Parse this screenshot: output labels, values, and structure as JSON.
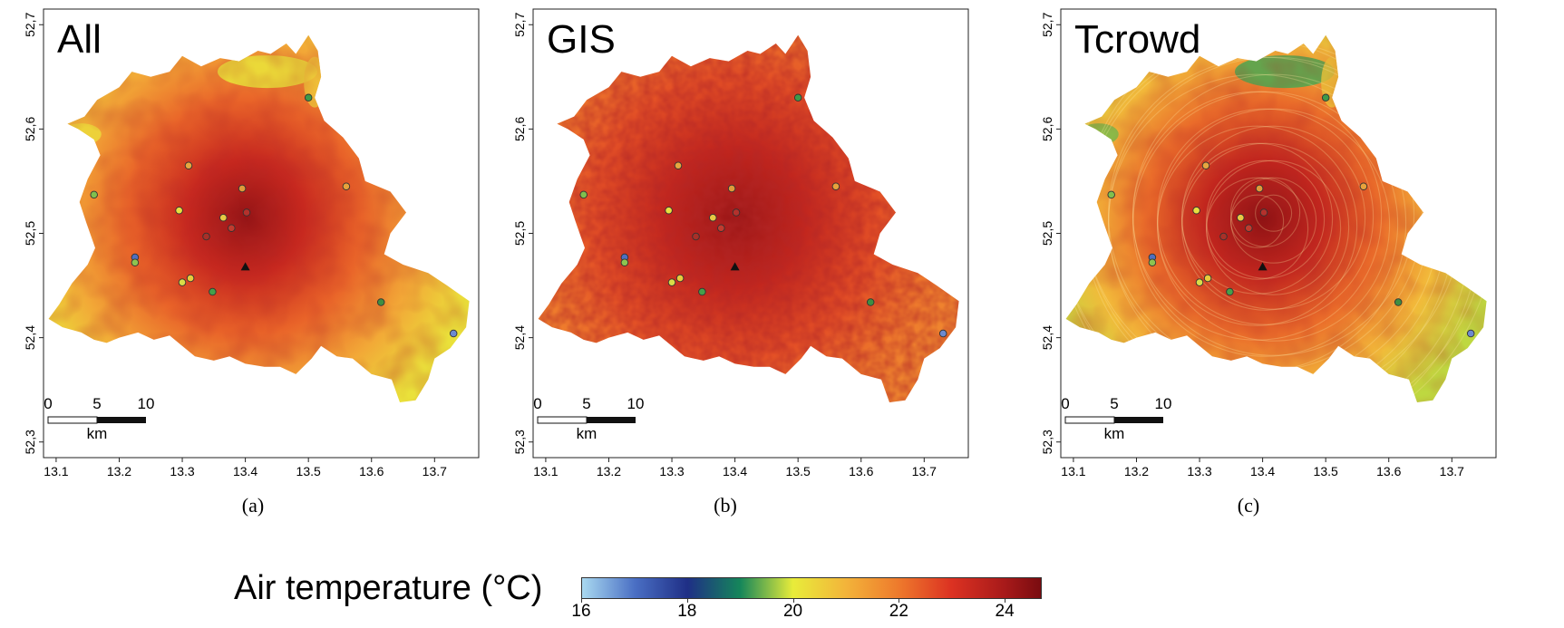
{
  "figure": {
    "xaxis": {
      "ticks": [
        "13.1",
        "13.2",
        "13.3",
        "13.4",
        "13.5",
        "13.6",
        "13.7"
      ],
      "values": [
        13.1,
        13.2,
        13.3,
        13.4,
        13.5,
        13.6,
        13.7
      ],
      "range": [
        13.08,
        13.77
      ]
    },
    "yaxis": {
      "ticks": [
        "52,3",
        "52,4",
        "52,5",
        "52,6",
        "52,7"
      ],
      "values": [
        52.3,
        52.4,
        52.5,
        52.6,
        52.7
      ],
      "range": [
        52.285,
        52.715
      ]
    },
    "scalebar": {
      "labels": [
        "0",
        "5",
        "10"
      ],
      "unit": "km"
    },
    "stations": [
      {
        "lon": 13.5,
        "lat": 52.63,
        "color": "#3f9a4a"
      },
      {
        "lon": 13.31,
        "lat": 52.565,
        "color": "#e6a640"
      },
      {
        "lon": 13.16,
        "lat": 52.537,
        "color": "#7fc04e"
      },
      {
        "lon": 13.395,
        "lat": 52.543,
        "color": "#e09a3a"
      },
      {
        "lon": 13.56,
        "lat": 52.545,
        "color": "#e7a23c"
      },
      {
        "lon": 13.295,
        "lat": 52.522,
        "color": "#e8e040"
      },
      {
        "lon": 13.365,
        "lat": 52.515,
        "color": "#e8c844"
      },
      {
        "lon": 13.402,
        "lat": 52.52,
        "color": "#b4312c"
      },
      {
        "lon": 13.338,
        "lat": 52.497,
        "color": "#a83028"
      },
      {
        "lon": 13.378,
        "lat": 52.505,
        "color": "#c23b2e"
      },
      {
        "lon": 13.225,
        "lat": 52.477,
        "color": "#4f6fc0"
      },
      {
        "lon": 13.225,
        "lat": 52.472,
        "color": "#8ec450"
      },
      {
        "lon": 13.3,
        "lat": 52.453,
        "color": "#d9dc48"
      },
      {
        "lon": 13.313,
        "lat": 52.457,
        "color": "#e8cc3c"
      },
      {
        "lon": 13.348,
        "lat": 52.444,
        "color": "#46a04a"
      },
      {
        "lon": 13.615,
        "lat": 52.434,
        "color": "#3f8e42"
      },
      {
        "lon": 13.73,
        "lat": 52.404,
        "color": "#6d8ad0"
      }
    ],
    "reference_marker": {
      "lon": 13.4,
      "lat": 52.468,
      "symbol": "triangle"
    }
  },
  "panels": [
    {
      "title": "All",
      "sublabel": "(a)",
      "style": "all"
    },
    {
      "title": "GIS",
      "sublabel": "(b)",
      "style": "gis"
    },
    {
      "title": "Tcrowd",
      "sublabel": "(c)",
      "style": "tcrowd"
    }
  ],
  "legend": {
    "title": "Air temperature (°C)",
    "range": [
      16,
      24.7
    ],
    "ticks": [
      16,
      18,
      20,
      22,
      24
    ],
    "tick_labels": [
      "16",
      "18",
      "20",
      "22",
      "24"
    ],
    "colors": [
      {
        "t": 16,
        "color": "#a9d9f0"
      },
      {
        "t": 17,
        "color": "#4a6fc4"
      },
      {
        "t": 18,
        "color": "#1f2f86"
      },
      {
        "t": 19,
        "color": "#15865a"
      },
      {
        "t": 20,
        "color": "#e8ec3a"
      },
      {
        "t": 21,
        "color": "#f3b43a"
      },
      {
        "t": 22,
        "color": "#ee7a2c"
      },
      {
        "t": 23,
        "color": "#dc3222"
      },
      {
        "t": 24,
        "color": "#a81a1a"
      },
      {
        "t": 24.7,
        "color": "#7a0c10"
      }
    ]
  }
}
